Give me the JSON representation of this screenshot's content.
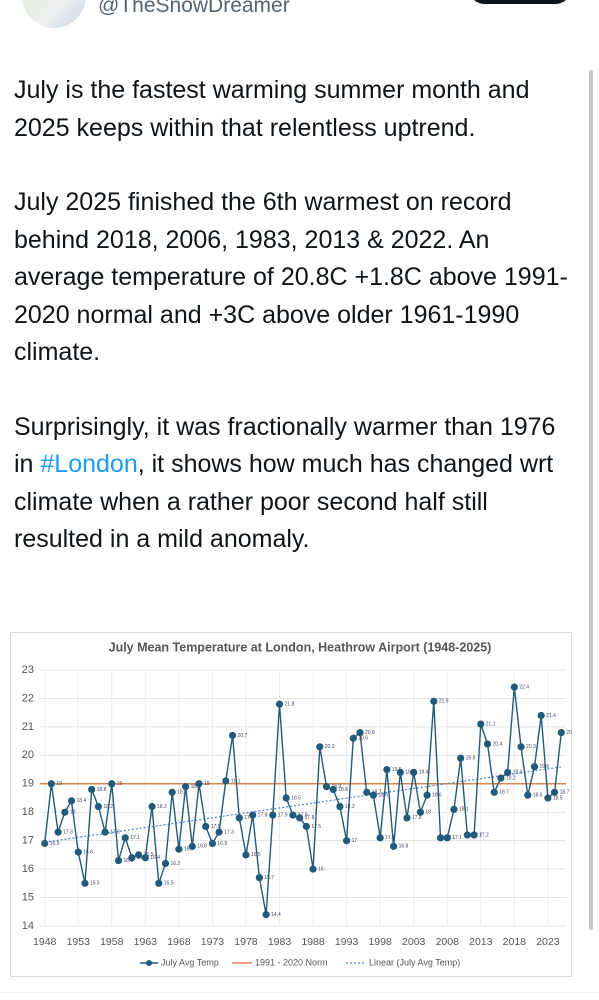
{
  "header": {
    "handle": "@TheSnowDreamer"
  },
  "tweet": {
    "paragraphs": [
      [
        "July is the fastest warming summer month and 2025 keeps within that relentless uptrend."
      ],
      [
        "July 2025 finished the 6th warmest on record behind 2018, 2006, 1983, 2013 & 2022. An average temperature of 20.8C +1.8C above 1991-2020 normal and +3C above older 1961-1990 climate."
      ],
      [
        "Surprisingly, it was fractionally warmer than 1976 in ",
        "#London",
        ", it shows how much has changed wrt climate when a rather poor second half still resulted in a mild anomaly."
      ]
    ]
  },
  "chart_data": {
    "type": "line",
    "title": "July Mean Temperature at London, Heathrow Airport (1948-2025)",
    "x": [
      1948,
      1949,
      1950,
      1951,
      1952,
      1953,
      1954,
      1955,
      1956,
      1957,
      1958,
      1959,
      1960,
      1961,
      1962,
      1963,
      1964,
      1965,
      1966,
      1967,
      1968,
      1969,
      1970,
      1971,
      1972,
      1973,
      1974,
      1975,
      1976,
      1977,
      1978,
      1979,
      1980,
      1981,
      1982,
      1983,
      1984,
      1985,
      1986,
      1987,
      1988,
      1989,
      1990,
      1991,
      1992,
      1993,
      1994,
      1995,
      1996,
      1997,
      1998,
      1999,
      2000,
      2001,
      2002,
      2003,
      2004,
      2005,
      2006,
      2007,
      2008,
      2009,
      2010,
      2011,
      2012,
      2013,
      2014,
      2015,
      2016,
      2017,
      2018,
      2019,
      2020,
      2021,
      2022,
      2023,
      2024,
      2025
    ],
    "series": [
      {
        "name": "July Avg Temp",
        "color": "#215a7a",
        "values": [
          16.9,
          19,
          17.3,
          18,
          18.4,
          16.6,
          15.5,
          18.8,
          18.2,
          17.3,
          19,
          16.3,
          17.1,
          16.4,
          16.5,
          16.4,
          18.2,
          15.5,
          16.2,
          18.7,
          16.7,
          18.9,
          16.8,
          19,
          17.5,
          16.9,
          17.3,
          19.1,
          20.7,
          17.8,
          16.5,
          17.9,
          15.7,
          14.4,
          17.9,
          21.8,
          18.5,
          17.9,
          17.8,
          17.5,
          16,
          20.3,
          18.9,
          18.8,
          18.2,
          17,
          20.6,
          20.8,
          18.7,
          18.6,
          17.1,
          19.5,
          16.8,
          19.4,
          17.8,
          19.4,
          18,
          18.6,
          21.9,
          17.1,
          17.1,
          18.1,
          19.9,
          17.2,
          17.2,
          21.1,
          20.4,
          18.7,
          19.2,
          19.4,
          22.4,
          20.3,
          18.6,
          19.6,
          21.4,
          18.5,
          18.7,
          20.8
        ]
      }
    ],
    "norm": {
      "name": "1991 - 2020 Norm",
      "value": 19,
      "color": "#e0854a"
    },
    "trend": {
      "name": "Linear (July Avg Temp)",
      "color": "#4a86c5"
    },
    "xlim": [
      1947.3,
      2025.7
    ],
    "xticks": [
      1948,
      1953,
      1958,
      1963,
      1968,
      1973,
      1978,
      1983,
      1988,
      1993,
      1998,
      2003,
      2008,
      2013,
      2018,
      2023
    ],
    "ylim": [
      14,
      23
    ],
    "yticks": [
      14,
      15,
      16,
      17,
      18,
      19,
      20,
      21,
      22,
      23
    ],
    "grid": true,
    "legend": "bottom"
  }
}
